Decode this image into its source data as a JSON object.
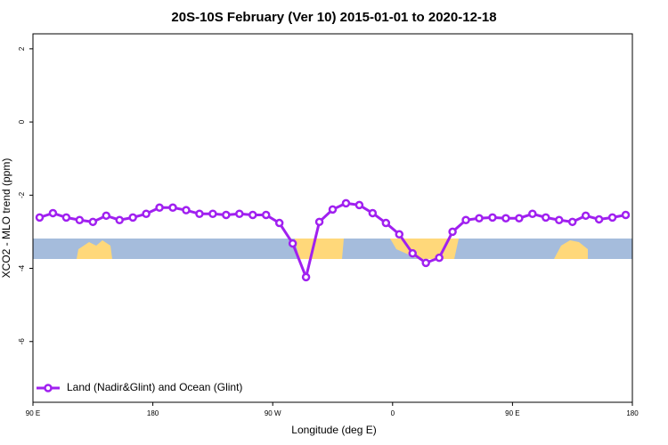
{
  "chart_data": {
    "type": "line",
    "title": "20S-10S February (Ver 10)   2015-01-01 to 2020-12-18",
    "x_label": "Longitude (deg E)",
    "y_label": "XCO2 - MLO trend (ppm)",
    "xlim": [
      90,
      540
    ],
    "xticks": [
      {
        "value": 90,
        "label": "90 E"
      },
      180,
      {
        "value": 270,
        "label": "90 W"
      },
      {
        "value": 360,
        "label": "0"
      },
      {
        "value": 450,
        "label": "90 E"
      },
      {
        "value": 540,
        "label": "180"
      }
    ],
    "ylim": [
      -7.66,
      2.41
    ],
    "yticks": [
      -6,
      -4,
      -2,
      0,
      2
    ],
    "legend": "bottom-left",
    "x": [
      95,
      105,
      115,
      125,
      135,
      145,
      155,
      165,
      175,
      185,
      195,
      205,
      215,
      225,
      235,
      245,
      255,
      265,
      275,
      285,
      295,
      305,
      315,
      325,
      335,
      345,
      355,
      365,
      375,
      385,
      395,
      405,
      415,
      425,
      435,
      445,
      455,
      465,
      475,
      485,
      495,
      505,
      515,
      525,
      535
    ],
    "series": [
      {
        "name": "Land (Nadir&Glint) and Ocean (Glint)",
        "color": "#a020f0",
        "values": [
          -2.61,
          -2.49,
          -2.61,
          -2.68,
          -2.73,
          -2.56,
          -2.68,
          -2.61,
          -2.51,
          -2.34,
          -2.34,
          -2.41,
          -2.51,
          -2.51,
          -2.54,
          -2.51,
          -2.54,
          -2.54,
          -2.76,
          -3.32,
          -4.24,
          -2.73,
          -2.39,
          -2.22,
          -2.27,
          -2.49,
          -2.76,
          -3.07,
          -3.59,
          -3.85,
          -3.71,
          -3.0,
          -2.68,
          -2.63,
          -2.61,
          -2.63,
          -2.63,
          -2.51,
          -2.61,
          -2.68,
          -2.73,
          -2.56,
          -2.66,
          -2.61,
          -2.54
        ]
      }
    ]
  }
}
